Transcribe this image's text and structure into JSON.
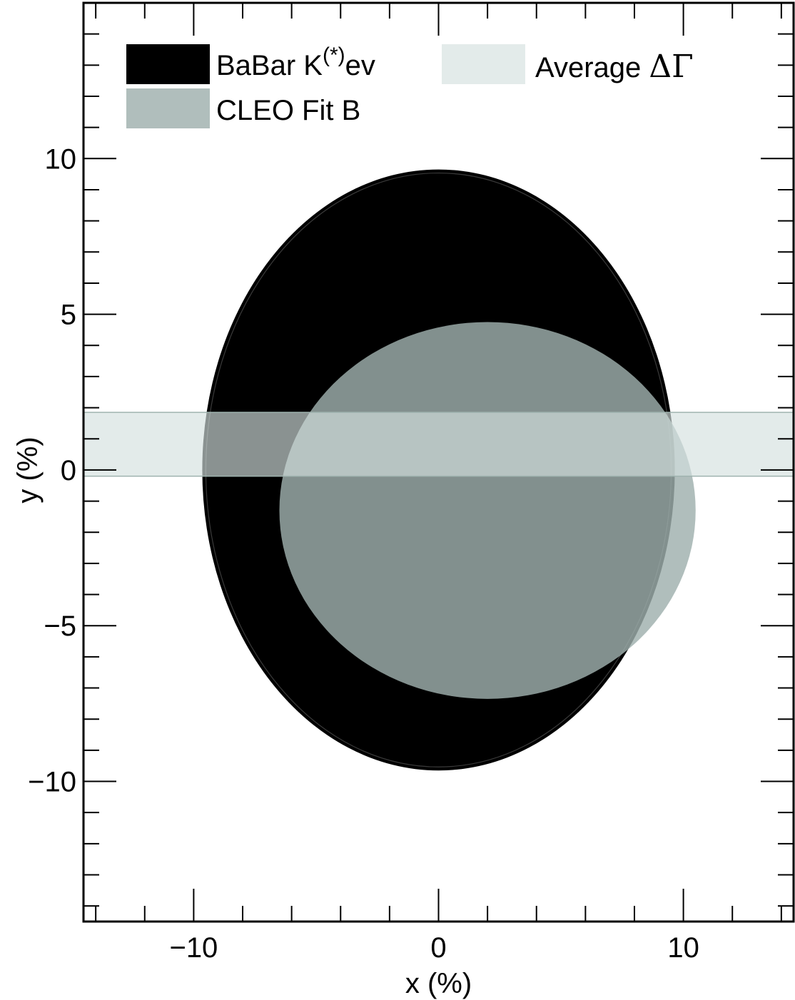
{
  "chart_data": {
    "type": "area",
    "xlabel": "x (%)",
    "ylabel": "y (%)",
    "xlim": [
      -14.5,
      14.5
    ],
    "ylim": [
      -14.5,
      15.0
    ],
    "x_ticks": [
      -10,
      0,
      10
    ],
    "x_tick_labels": [
      "−10",
      "0",
      "10"
    ],
    "y_ticks": [
      -10,
      -5,
      0,
      5,
      10
    ],
    "y_tick_labels": [
      "−10",
      "−5",
      "0",
      "5",
      "10"
    ],
    "x_minor_step": 2,
    "y_minor_step": 1,
    "grid": false,
    "legend_position": "top",
    "series": [
      {
        "name": "BaBar K(*)ev",
        "legend_main": "BaBar K",
        "legend_sup": "(*)",
        "legend_tail": "ev",
        "shape": "ellipse",
        "cx": 0.0,
        "cy": 0.0,
        "rx": 9.65,
        "ry": 9.65,
        "color": "#000000",
        "opacity": 1.0
      },
      {
        "name": "CLEO Fit B",
        "legend_main": "CLEO Fit B",
        "shape": "ellipse",
        "cx": 2.0,
        "cy": -1.3,
        "rx": 8.5,
        "ry": 6.05,
        "color": "#9fb0ad",
        "opacity": 0.82
      },
      {
        "name": "Average ΔΓ",
        "legend_main": "Average ",
        "legend_greek": "ΔΓ",
        "shape": "band",
        "y_low": -0.2,
        "y_high": 1.85,
        "color": "#d4e1de",
        "opacity": 0.65
      }
    ]
  }
}
